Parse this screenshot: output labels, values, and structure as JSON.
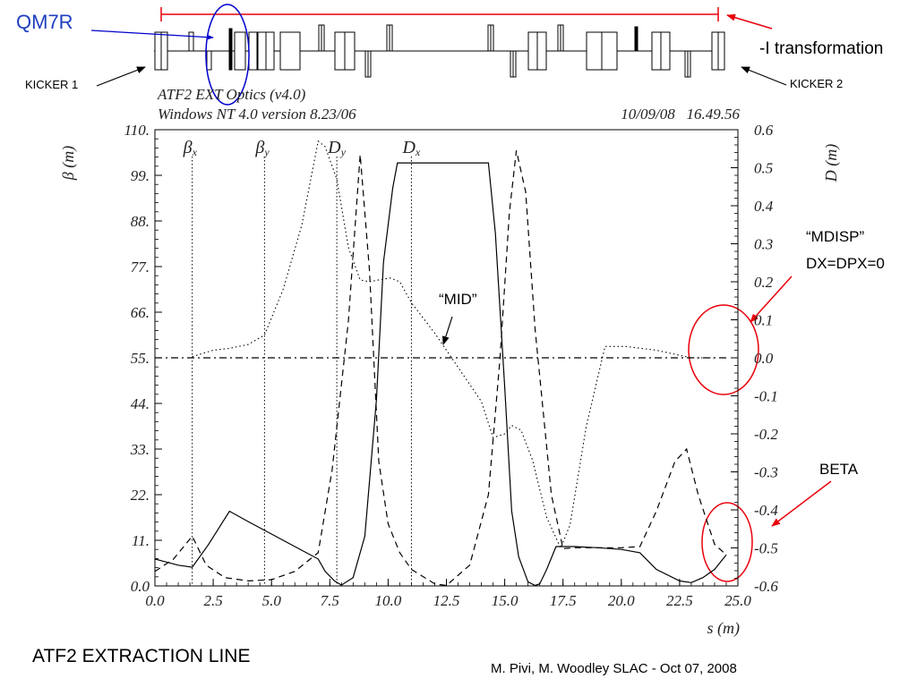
{
  "annotations": {
    "qm7r": "QM7R",
    "kicker1": "KICKER 1",
    "kicker2": "KICKER 2",
    "minus_i": "-I transformation",
    "mdisp_line1": "“MDISP”",
    "mdisp_line2": "DX=DPX=0",
    "mid": "“MID”",
    "beta": "BETA"
  },
  "header": {
    "title_line1": "ATF2 EXT Optics (v4.0)",
    "title_line2": "Windows NT 4.0 version 8.23/06",
    "datetime": "10/09/08   16.49.56"
  },
  "footer": {
    "left": "ATF2 EXTRACTION LINE",
    "right": "M. Pivi, M. Woodley SLAC - Oct 07, 2008"
  },
  "colors": {
    "annotation_red": "#e8000b",
    "annotation_blue": "#0000cc",
    "qm7r_text": "#1f3fbf"
  },
  "chart_data": {
    "type": "line",
    "xlabel": "s (m)",
    "ylabel_left": "β (m)",
    "ylabel_right": "D (m)",
    "xlim": [
      0,
      25
    ],
    "ylim_left": [
      0,
      110
    ],
    "ylim_right": [
      -0.6,
      0.6
    ],
    "xticks": [
      0,
      2.5,
      5,
      7.5,
      10,
      12.5,
      15,
      17.5,
      20,
      22.5,
      25
    ],
    "xtick_labels": [
      "0.0",
      "2.5",
      "5.0",
      "7.5",
      "10.0",
      "12.5",
      "15.0",
      "17.5",
      "20.0",
      "22.5",
      "25.0"
    ],
    "yticks_left": [
      0,
      11,
      22,
      33,
      44,
      55,
      66,
      77,
      88,
      99,
      110
    ],
    "ytick_labels_left": [
      "0.0",
      "11.",
      "22.",
      "33.",
      "44.",
      "55.",
      "66.",
      "77.",
      "88.",
      "99.",
      "110."
    ],
    "yticks_right": [
      -0.6,
      -0.5,
      -0.4,
      -0.3,
      -0.2,
      -0.1,
      0,
      0.1,
      0.2,
      0.3,
      0.4,
      0.5,
      0.6
    ],
    "ytick_labels_right": [
      "-0.6",
      "-0.5",
      "-0.4",
      "-0.3",
      "-0.2",
      "-0.1",
      "0.0",
      "0.1",
      "0.2",
      "0.3",
      "0.4",
      "0.5",
      "0.6"
    ],
    "series_labels": [
      {
        "main": "β",
        "sub": "x",
        "s": 1.6
      },
      {
        "main": "β",
        "sub": "y",
        "s": 4.7
      },
      {
        "main": "D",
        "sub": "y",
        "s": 7.8
      },
      {
        "main": "D",
        "sub": "x",
        "s": 11.0
      }
    ],
    "series": [
      {
        "key": "beta_x",
        "axis": "left",
        "style": "solid",
        "x": [
          0,
          1,
          1.6,
          2.3,
          3.2,
          4,
          5,
          6,
          7,
          7.3,
          7.7,
          8,
          8.5,
          9,
          9.5,
          9.8,
          10.2,
          10.4,
          10.6,
          11,
          12,
          13,
          14,
          14.3,
          14.6,
          15,
          15.3,
          15.6,
          16,
          16.3,
          16.5,
          16.8,
          17.2,
          17.5,
          18,
          19,
          20,
          20.8,
          21.5,
          22.5,
          23,
          23.5,
          24,
          24.5
        ],
        "y": [
          6.5,
          5,
          4.5,
          10,
          18,
          15.5,
          12.5,
          9.5,
          6.5,
          3.5,
          1.2,
          0.2,
          2,
          12,
          45,
          78,
          96,
          102,
          102,
          102,
          102,
          102,
          102,
          102,
          85,
          48,
          18,
          7,
          1,
          0.1,
          0.5,
          4,
          9.5,
          9.5,
          9.5,
          9.2,
          8.8,
          8,
          4,
          1.2,
          0.8,
          2,
          4,
          7.5
        ]
      },
      {
        "key": "beta_y",
        "axis": "left",
        "style": "dashed",
        "x": [
          0,
          0.8,
          1.6,
          2.2,
          3,
          4,
          5,
          6,
          7,
          7.6,
          8.3,
          8.8,
          9.2,
          9.6,
          10,
          10.5,
          11,
          12,
          12.5,
          13.5,
          14.3,
          14.8,
          15.2,
          15.5,
          15.9,
          16.3,
          17,
          17.5,
          18,
          19,
          20,
          20.8,
          21.5,
          22.3,
          22.8,
          23.3,
          24,
          24.5
        ],
        "y": [
          3.5,
          6.5,
          12,
          5,
          2,
          1.2,
          1.5,
          3.5,
          8,
          28,
          64,
          104,
          76,
          30,
          15,
          8,
          4,
          0.5,
          0.1,
          5,
          22,
          55,
          90,
          105,
          95,
          62,
          22,
          9,
          9.2,
          9.2,
          9.2,
          9.5,
          18,
          30,
          33,
          22,
          10,
          7.5
        ]
      },
      {
        "key": "disp_x",
        "axis": "right",
        "style": "dotted",
        "x": [
          1.6,
          2.5,
          3.2,
          4,
          4.7,
          5.5,
          6.3,
          7.0,
          7.3,
          7.8,
          8.3,
          8.8,
          9.2,
          9.6,
          10.1,
          10.5,
          11,
          12,
          13,
          14,
          14.5,
          15,
          15.3,
          15.7,
          16.2,
          16.8,
          17.4,
          17.8,
          18.5,
          19.3,
          20.2,
          21.5,
          23,
          24
        ],
        "y": [
          0.003,
          0.02,
          0.025,
          0.035,
          0.06,
          0.18,
          0.35,
          0.57,
          0.555,
          0.47,
          0.29,
          0.205,
          0.2,
          0.205,
          0.21,
          0.2,
          0.145,
          0.065,
          -0.025,
          -0.115,
          -0.21,
          -0.2,
          -0.178,
          -0.19,
          -0.27,
          -0.42,
          -0.5,
          -0.44,
          -0.18,
          0.03,
          0.03,
          0.02,
          0.0,
          0.0
        ]
      },
      {
        "key": "disp_y",
        "axis": "right",
        "style": "dashdot",
        "x": [
          0,
          24.5
        ],
        "y": [
          0,
          0
        ]
      }
    ]
  },
  "lattice": {
    "color": "#000000"
  }
}
